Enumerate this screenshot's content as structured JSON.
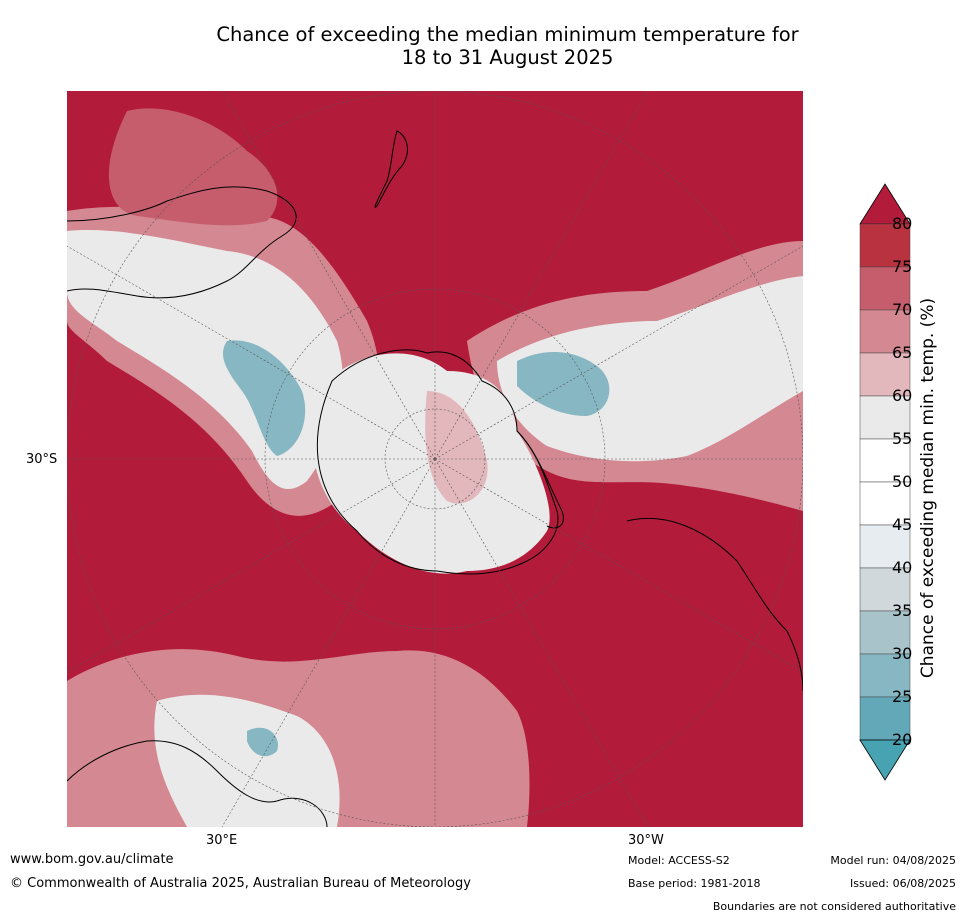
{
  "title": {
    "line1": "Chance of exceeding the median minimum temperature for",
    "line2": "18 to 31 August 2025"
  },
  "map": {
    "projection": "south-polar",
    "lat_label": "30°S",
    "lon_labels": [
      "30°E",
      "30°W"
    ],
    "colors": {
      "ocean_high": "#b31b3a",
      "land_outline": "#000000",
      "graticule": "#555555"
    }
  },
  "colorbar": {
    "label": "Chance of exceeding median min. temp. (%)",
    "ticks": [
      "80",
      "75",
      "70",
      "65",
      "60",
      "55",
      "50",
      "45",
      "40",
      "35",
      "30",
      "25",
      "20"
    ],
    "bands": [
      {
        "range": [
          75,
          80
        ],
        "color": "#b9323f"
      },
      {
        "range": [
          70,
          75
        ],
        "color": "#c65d6d"
      },
      {
        "range": [
          65,
          70
        ],
        "color": "#d48891"
      },
      {
        "range": [
          60,
          65
        ],
        "color": "#e3b8bc"
      },
      {
        "range": [
          55,
          60
        ],
        "color": "#ebeaea"
      },
      {
        "range": [
          50,
          55
        ],
        "color": "#ffffff"
      },
      {
        "range": [
          45,
          50
        ],
        "color": "#ffffff"
      },
      {
        "range": [
          40,
          45
        ],
        "color": "#e6ecef"
      },
      {
        "range": [
          35,
          40
        ],
        "color": "#d0d8dc"
      },
      {
        "range": [
          30,
          35
        ],
        "color": "#a8c4ca"
      },
      {
        "range": [
          25,
          30
        ],
        "color": "#86b7c2"
      },
      {
        "range": [
          20,
          25
        ],
        "color": "#62a8b8"
      }
    ],
    "over_color": "#b31b3a",
    "under_color": "#47a2b2"
  },
  "footer": {
    "website": "www.bom.gov.au/climate",
    "copyright": "© Commonwealth of Australia 2025, Australian Bureau of Meteorology",
    "model": "Model: ACCESS-S2",
    "base_period": "Base period: 1981-2018",
    "model_run": "Model run: 04/08/2025",
    "issued": "Issued: 06/08/2025",
    "disclaimer": "Boundaries are not considered authoritative"
  }
}
